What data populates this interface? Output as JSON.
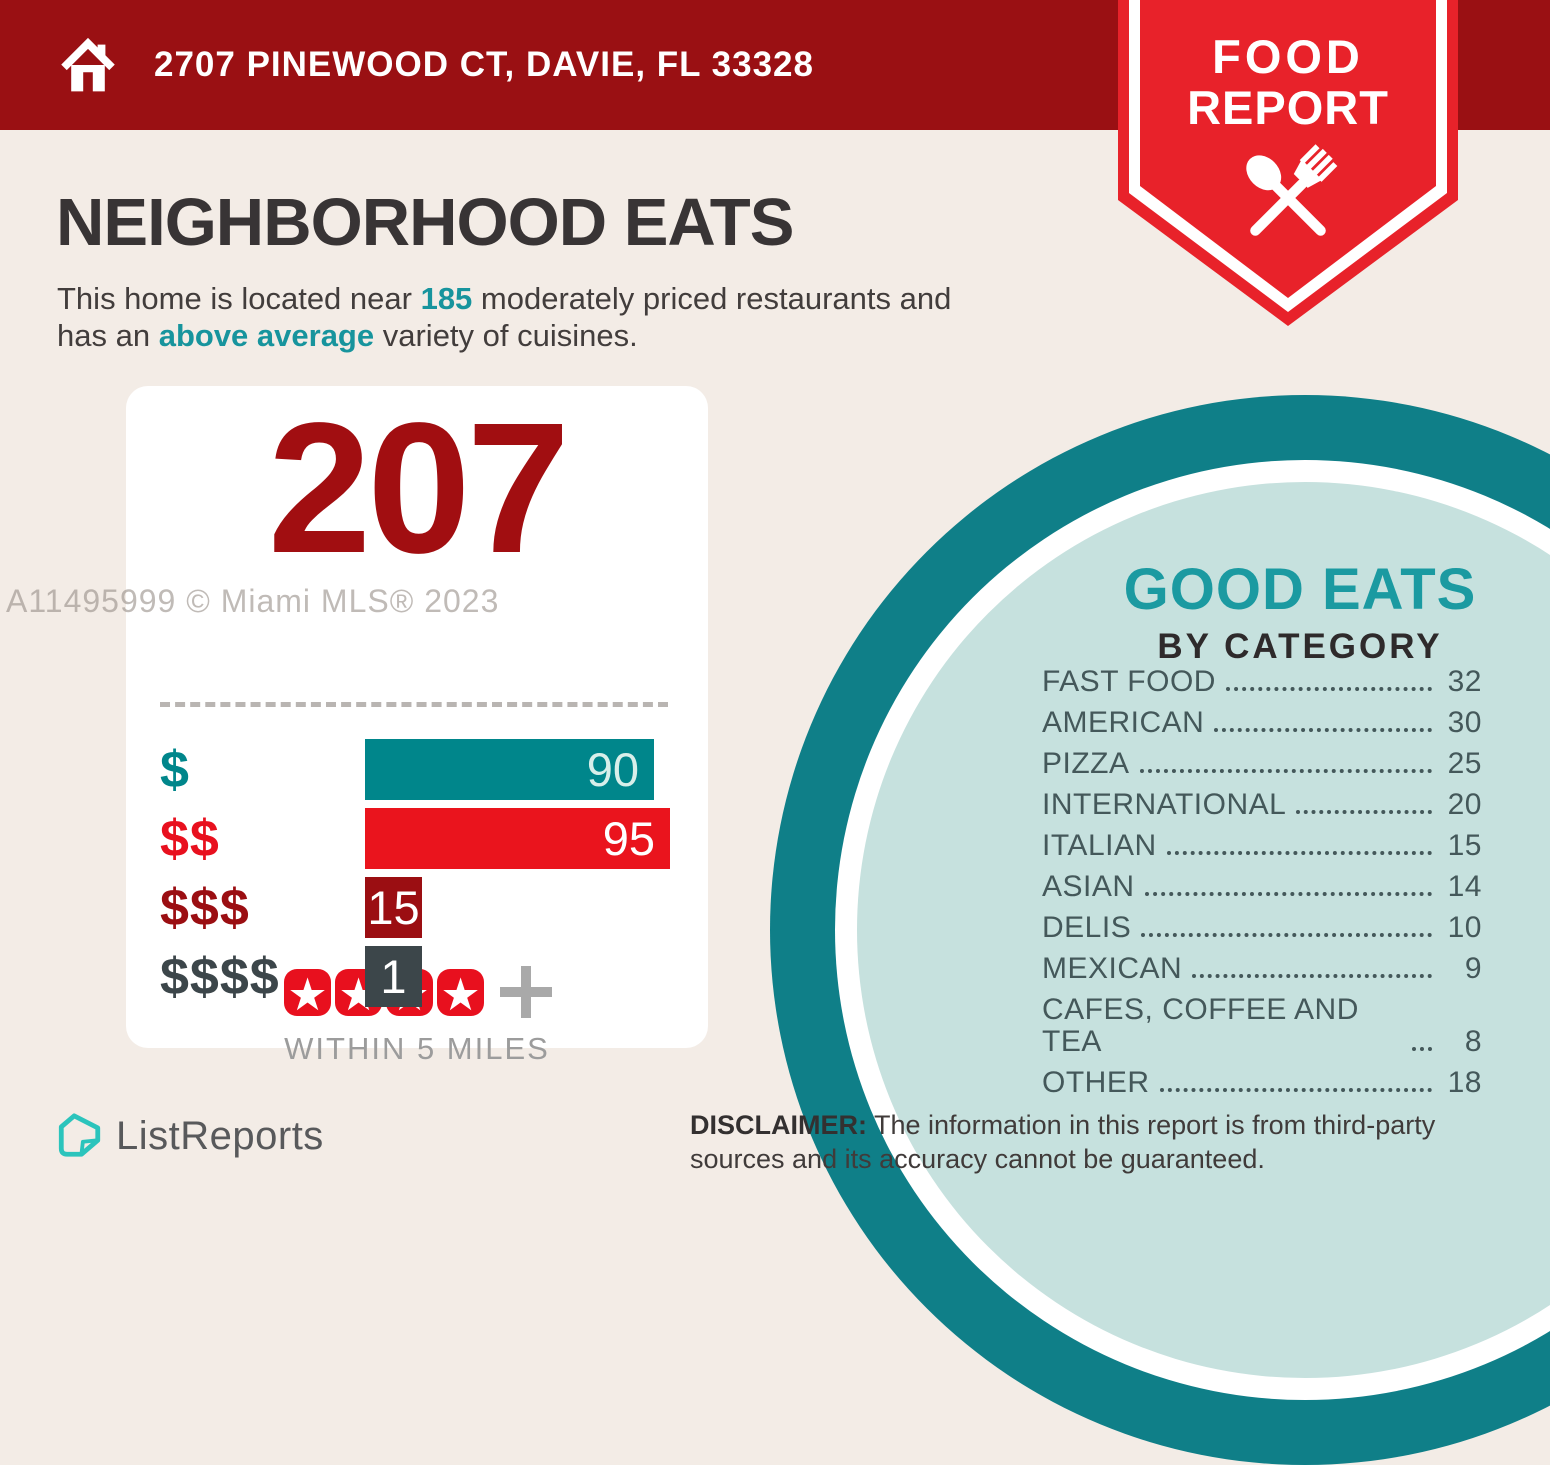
{
  "watermark": "A11495999 © Miami MLS® 2023",
  "header": {
    "address": "2707 PINEWOOD CT, DAVIE, FL 33328"
  },
  "badge": {
    "line1": "FOOD",
    "line2": "REPORT"
  },
  "intro": {
    "title": "NEIGHBORHOOD EATS",
    "p1": "This home is located near ",
    "count": "185",
    "p2": " moderately priced restaurants and",
    "p3": "has an ",
    "highlight": "above average",
    "p4": " variety of cuisines."
  },
  "summary_card": {
    "total": "207",
    "stars": 4,
    "radius_label": "WITHIN 5 MILES"
  },
  "chart_data": [
    {
      "type": "bar",
      "orientation": "horizontal",
      "title": "Restaurant count by price tier",
      "categories": [
        "$",
        "$$",
        "$$$",
        "$$$$"
      ],
      "values": [
        90,
        95,
        15,
        1
      ],
      "bar_colors": [
        "#00868B",
        "#EA141D",
        "#9B0E12",
        "#3C464A"
      ],
      "value_labels_inside_bars": true,
      "axis": "none",
      "grid": false
    },
    {
      "type": "table",
      "title": "GOOD EATS BY CATEGORY",
      "categories": [
        "FAST FOOD",
        "AMERICAN",
        "PIZZA",
        "INTERNATIONAL",
        "ITALIAN",
        "ASIAN",
        "DELIS",
        "MEXICAN",
        "CAFES, COFFEE AND TEA",
        "OTHER"
      ],
      "values": [
        32,
        30,
        25,
        20,
        15,
        14,
        10,
        9,
        8,
        18
      ]
    }
  ],
  "good_eats": {
    "title": "GOOD EATS",
    "subtitle": "BY CATEGORY"
  },
  "footer": {
    "logo_text": "ListReports",
    "disclaimer_label": "DISCLAIMER:",
    "disclaimer_text": " The information in this report is from third-party sources and its accuracy cannot be guaranteed."
  },
  "icons": {
    "header_icon": "home-icon",
    "badge_icon": "crossed-spoon-and-fork-icon",
    "rating_icon": "star-icon",
    "logo_icon": "listreports-house-icon"
  },
  "colors": {
    "page_background": "#F3ECE6",
    "header_red": "#9A1013",
    "badge_red": "#E8222A",
    "accent_teal": "#17949D",
    "big_number_red": "#A10E11",
    "star_red": "#E8101E",
    "circle_dark_teal": "#0F7F88",
    "circle_light_teal": "#C6E1DE",
    "good_eats_teal": "#1B9AA1",
    "list_text": "#44585A",
    "logo_teal": "#2BC4BC"
  }
}
